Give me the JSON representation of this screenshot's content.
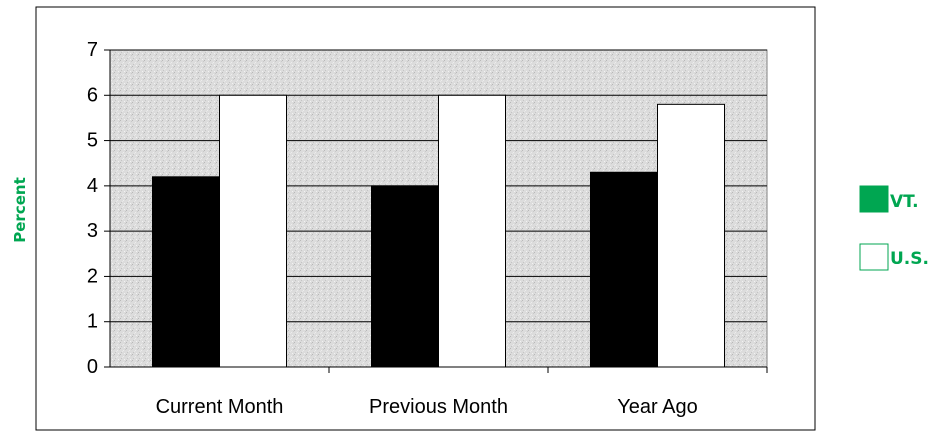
{
  "chart_data": {
    "type": "bar",
    "categories": [
      "Current Month",
      "Previous Month",
      "Year Ago"
    ],
    "series": [
      {
        "name": "VT.",
        "values": [
          4.2,
          4.0,
          4.3
        ],
        "color": "#000000"
      },
      {
        "name": "U.S.",
        "values": [
          6.0,
          6.0,
          5.8
        ],
        "color": "#ffffff"
      }
    ],
    "ylabel": "Percent",
    "ylim": [
      0,
      7
    ],
    "yticks": [
      0,
      1,
      2,
      3,
      4,
      5,
      6,
      7
    ],
    "grid": true,
    "legend": "right",
    "legend_swatch_color_vt": "#00a651",
    "label_color": "#00a651"
  }
}
